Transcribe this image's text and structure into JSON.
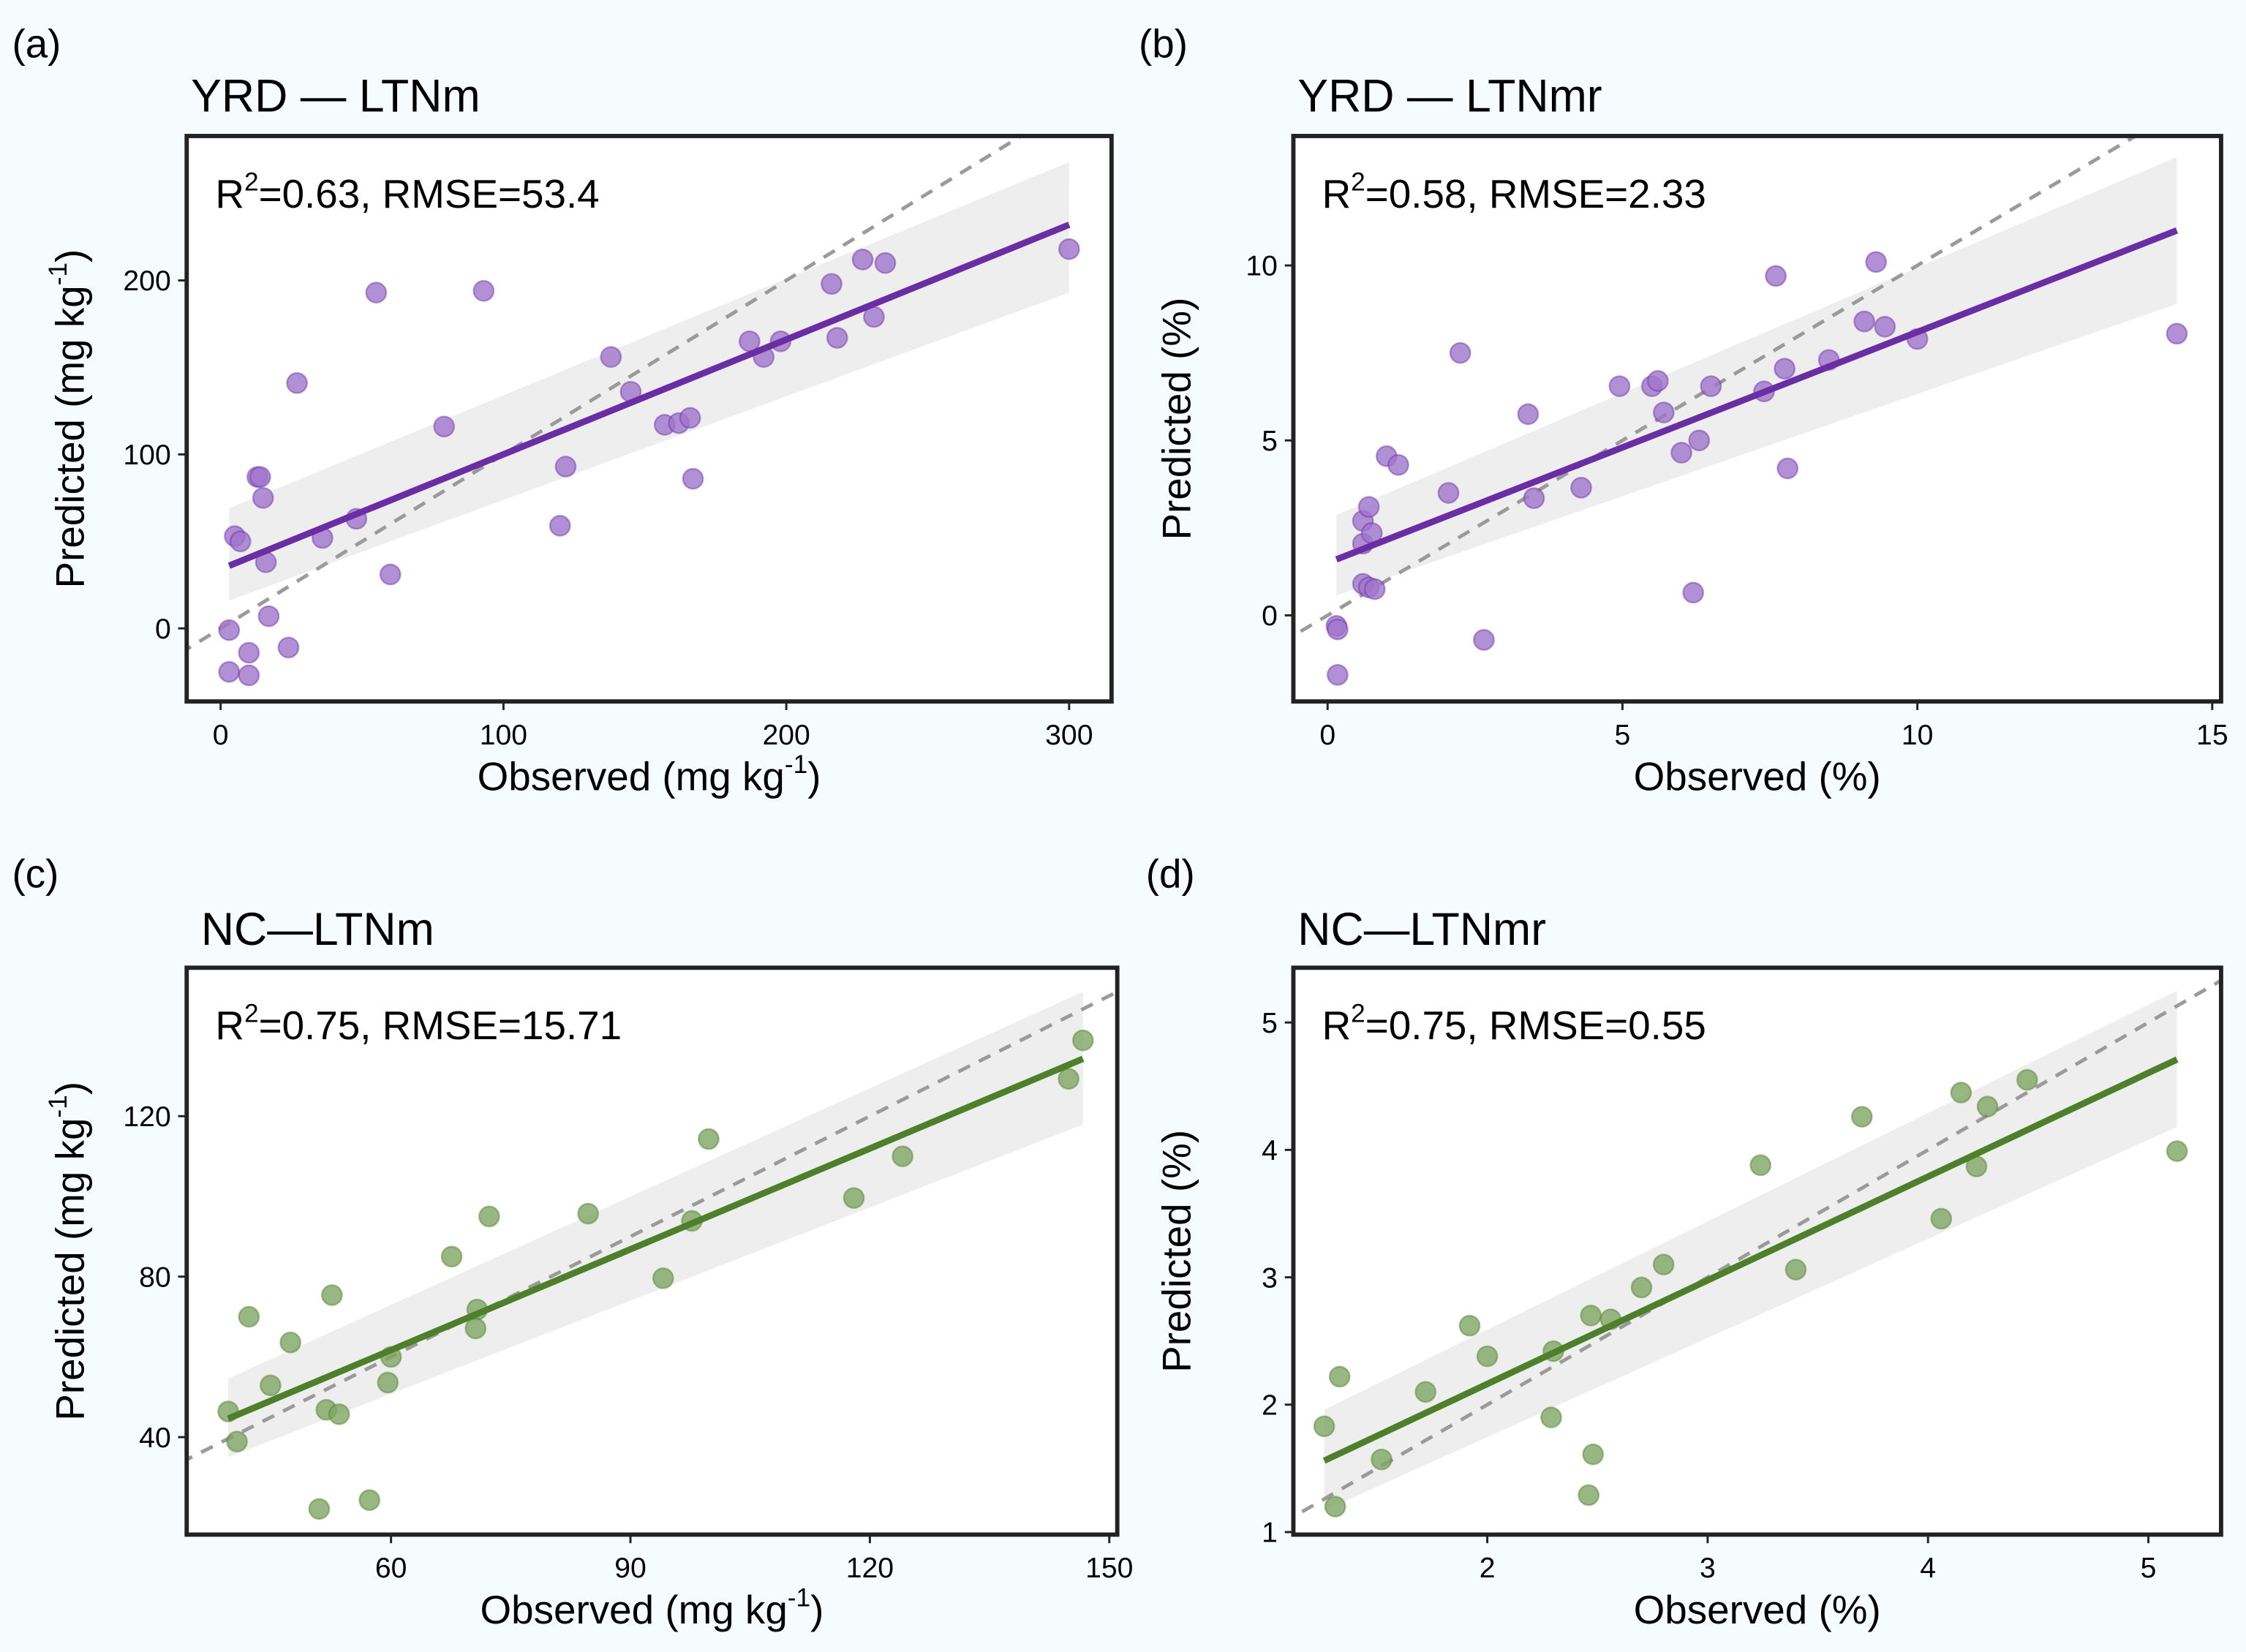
{
  "colors": {
    "background": "#f6fcfd",
    "purple_point": "#9f74cc",
    "purple_line": "#6a2da3",
    "green_point": "#7fa563",
    "green_line": "#4e7f2b",
    "ribbon": "#ebebeb",
    "identity_line": "#9a9a9a"
  },
  "chart_data": [
    {
      "type": "scatter",
      "panel_label": "(a)",
      "title": "YRD — LTNm",
      "annotation": {
        "r": "R",
        "sup": "2",
        "rest": "=0.63, RMSE=53.4"
      },
      "xlabel": {
        "main": "Observed (mg kg",
        "sup": "-1",
        "end": ")"
      },
      "ylabel": {
        "main": "Predicted (mg kg",
        "sup": "-1",
        "end": ")"
      },
      "xlim": [
        -12,
        315
      ],
      "ylim": [
        -42,
        283
      ],
      "xticks": [
        "0",
        "100",
        "200",
        "300"
      ],
      "yticks": [
        "0",
        "100",
        "200"
      ],
      "color": "purple",
      "grid": false,
      "identity_line": true,
      "points": [
        [
          3,
          -1
        ],
        [
          3,
          -25
        ],
        [
          10,
          -27
        ],
        [
          10,
          -14
        ],
        [
          5,
          53
        ],
        [
          7,
          50
        ],
        [
          13,
          87
        ],
        [
          14,
          87
        ],
        [
          15,
          75
        ],
        [
          16,
          38
        ],
        [
          17,
          7
        ],
        [
          24,
          -11
        ],
        [
          27,
          141
        ],
        [
          36,
          52
        ],
        [
          48,
          63
        ],
        [
          55,
          193
        ],
        [
          60,
          31
        ],
        [
          79,
          116
        ],
        [
          93,
          194
        ],
        [
          120,
          59
        ],
        [
          122,
          93
        ],
        [
          138,
          156
        ],
        [
          145,
          136
        ],
        [
          157,
          117
        ],
        [
          162,
          118
        ],
        [
          166,
          121
        ],
        [
          167,
          86
        ],
        [
          187,
          165
        ],
        [
          192,
          156
        ],
        [
          198,
          165
        ],
        [
          216,
          198
        ],
        [
          218,
          167
        ],
        [
          227,
          212
        ],
        [
          231,
          179
        ],
        [
          235,
          210
        ],
        [
          300,
          218
        ]
      ],
      "fit": {
        "x": [
          3,
          300
        ],
        "y": [
          36,
          232
        ],
        "lower": [
          16,
          193
        ],
        "upper": [
          69,
          268
        ]
      }
    },
    {
      "type": "scatter",
      "panel_label": "(b)",
      "title": "YRD — LTNmr",
      "annotation": {
        "r": "R",
        "sup": "2",
        "rest": "=0.58, RMSE=2.33"
      },
      "xlabel": {
        "main": "Observed (%)",
        "sup": "",
        "end": ""
      },
      "ylabel": {
        "main": "Predicted (%)",
        "sup": "",
        "end": ""
      },
      "xlim": [
        -0.58,
        15.15
      ],
      "ylim": [
        -2.46,
        13.7
      ],
      "xticks": [
        "0",
        "5",
        "10",
        "15"
      ],
      "yticks": [
        "0",
        "5",
        "10"
      ],
      "color": "purple",
      "grid": false,
      "identity_line": true,
      "points": [
        [
          0.15,
          -0.3
        ],
        [
          0.17,
          -0.4
        ],
        [
          0.17,
          -1.7
        ],
        [
          0.6,
          2.7
        ],
        [
          0.6,
          2.05
        ],
        [
          0.7,
          3.1
        ],
        [
          0.75,
          2.35
        ],
        [
          0.6,
          0.9
        ],
        [
          0.7,
          0.8
        ],
        [
          0.8,
          0.75
        ],
        [
          1.0,
          4.55
        ],
        [
          1.2,
          4.3
        ],
        [
          2.05,
          3.5
        ],
        [
          2.25,
          7.5
        ],
        [
          2.65,
          -0.7
        ],
        [
          3.4,
          5.75
        ],
        [
          3.5,
          3.35
        ],
        [
          4.3,
          3.65
        ],
        [
          4.95,
          6.55
        ],
        [
          5.5,
          6.55
        ],
        [
          5.6,
          6.7
        ],
        [
          5.7,
          5.8
        ],
        [
          6.0,
          4.65
        ],
        [
          6.3,
          5.0
        ],
        [
          6.2,
          0.65
        ],
        [
          6.5,
          6.55
        ],
        [
          7.4,
          6.4
        ],
        [
          7.6,
          9.7
        ],
        [
          7.75,
          7.05
        ],
        [
          7.8,
          4.2
        ],
        [
          8.5,
          7.3
        ],
        [
          9.1,
          8.4
        ],
        [
          9.3,
          10.1
        ],
        [
          9.45,
          8.25
        ],
        [
          10.0,
          7.9
        ],
        [
          14.4,
          8.05
        ]
      ],
      "fit": {
        "x": [
          0.15,
          14.4
        ],
        "y": [
          1.6,
          11.0
        ],
        "lower": [
          0.57,
          8.9
        ],
        "upper": [
          2.87,
          13.1
        ]
      }
    },
    {
      "type": "scatter",
      "panel_label": "(c)",
      "title": "NC—LTNm",
      "annotation": {
        "r": "R",
        "sup": "2",
        "rest": "=0.75, RMSE=15.71"
      },
      "xlabel": {
        "main": "Observed (mg kg",
        "sup": "-1",
        "end": ")"
      },
      "ylabel": {
        "main": "Predicted (mg kg",
        "sup": "-1",
        "end": ")"
      },
      "xlim": [
        34.4,
        151
      ],
      "ylim": [
        15.7,
        157
      ],
      "xticks": [
        "60",
        "90",
        "120",
        "150"
      ],
      "yticks": [
        "40",
        "80",
        "120"
      ],
      "color": "green",
      "grid": false,
      "identity_line": true,
      "points": [
        [
          39.6,
          46.4
        ],
        [
          40.7,
          38.9
        ],
        [
          42.2,
          70
        ],
        [
          44.9,
          52.9
        ],
        [
          47.4,
          63.6
        ],
        [
          51,
          22.1
        ],
        [
          51.9,
          46.8
        ],
        [
          52.6,
          75.4
        ],
        [
          53.5,
          45.7
        ],
        [
          57.3,
          24.3
        ],
        [
          59.6,
          53.6
        ],
        [
          60,
          60
        ],
        [
          67.6,
          85
        ],
        [
          70.8,
          71.8
        ],
        [
          70.6,
          67.1
        ],
        [
          72.3,
          95
        ],
        [
          84.7,
          95.7
        ],
        [
          94.1,
          79.6
        ],
        [
          97.7,
          93.9
        ],
        [
          99.8,
          114.3
        ],
        [
          118,
          99.6
        ],
        [
          124.1,
          110
        ],
        [
          144.9,
          129.3
        ],
        [
          146.7,
          138.9
        ]
      ],
      "fit": {
        "x": [
          39.6,
          146.7
        ],
        "y": [
          44.6,
          134.3
        ],
        "lower": [
          35,
          117.9
        ],
        "upper": [
          54.6,
          151
        ]
      }
    },
    {
      "type": "scatter",
      "panel_label": "(d)",
      "title": "NC—LTNmr",
      "annotation": {
        "r": "R",
        "sup": "2",
        "rest": "=0.75, RMSE=0.55"
      },
      "xlabel": {
        "main": "Observed (%)",
        "sup": "",
        "end": ""
      },
      "ylabel": {
        "main": "Predicted (%)",
        "sup": "",
        "end": ""
      },
      "xlim": [
        1.12,
        5.33
      ],
      "ylim": [
        0.98,
        5.43
      ],
      "xticks": [
        "2",
        "3",
        "4",
        "5"
      ],
      "yticks": [
        "1",
        "2",
        "3",
        "4",
        "5"
      ],
      "color": "green",
      "grid": false,
      "identity_line": true,
      "points": [
        [
          1.26,
          1.83
        ],
        [
          1.31,
          1.2
        ],
        [
          1.33,
          2.22
        ],
        [
          1.52,
          1.57
        ],
        [
          1.72,
          2.1
        ],
        [
          1.92,
          2.62
        ],
        [
          2.0,
          2.38
        ],
        [
          2.29,
          1.9
        ],
        [
          2.3,
          2.42
        ],
        [
          2.46,
          1.29
        ],
        [
          2.48,
          1.61
        ],
        [
          2.47,
          2.7
        ],
        [
          2.56,
          2.67
        ],
        [
          2.7,
          2.92
        ],
        [
          2.8,
          3.1
        ],
        [
          3.24,
          3.88
        ],
        [
          3.4,
          3.06
        ],
        [
          3.7,
          4.26
        ],
        [
          4.06,
          3.46
        ],
        [
          4.15,
          4.45
        ],
        [
          4.22,
          3.87
        ],
        [
          4.27,
          4.34
        ],
        [
          4.45,
          4.55
        ],
        [
          5.13,
          3.99
        ]
      ],
      "fit": {
        "x": [
          1.26,
          5.13
        ],
        "y": [
          1.56,
          4.71
        ],
        "lower": [
          1.17,
          4.18
        ],
        "upper": [
          1.96,
          5.25
        ]
      }
    }
  ]
}
